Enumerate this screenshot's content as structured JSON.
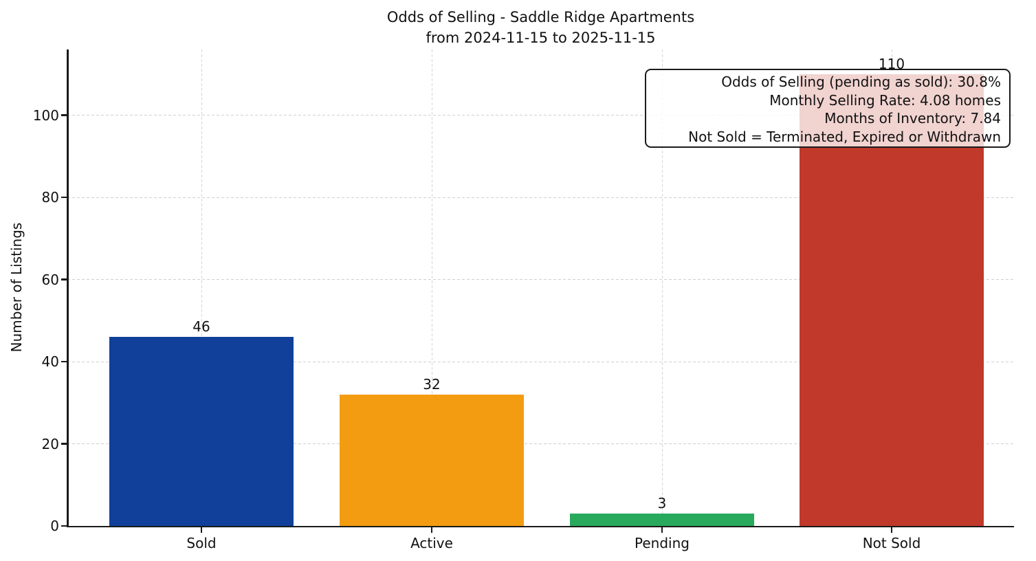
{
  "chart_data": {
    "type": "bar",
    "title": "Odds of Selling - Saddle Ridge Apartments",
    "subtitle": "from 2024-11-15 to 2025-11-15",
    "categories": [
      "Sold",
      "Active",
      "Pending",
      "Not Sold"
    ],
    "values": [
      46,
      32,
      3,
      110
    ],
    "bar_colors": [
      "#10409a",
      "#f39c12",
      "#28a95c",
      "#c0392b"
    ],
    "value_labels": [
      "46",
      "32",
      "3",
      "110"
    ],
    "xlabel": "",
    "ylabel": "Number of Listings",
    "yticks": [
      0,
      20,
      40,
      60,
      80,
      100
    ],
    "ylim": [
      0,
      116
    ],
    "grid": "dashed horizontal and vertical, light gray",
    "legend": "none",
    "annotation": {
      "lines": [
        "Odds of Selling (pending as sold): 30.8%",
        "Monthly Selling Rate: 4.08 homes",
        "Months of Inventory: 7.84",
        "Not Sold = Terminated, Expired or Withdrawn"
      ]
    }
  }
}
